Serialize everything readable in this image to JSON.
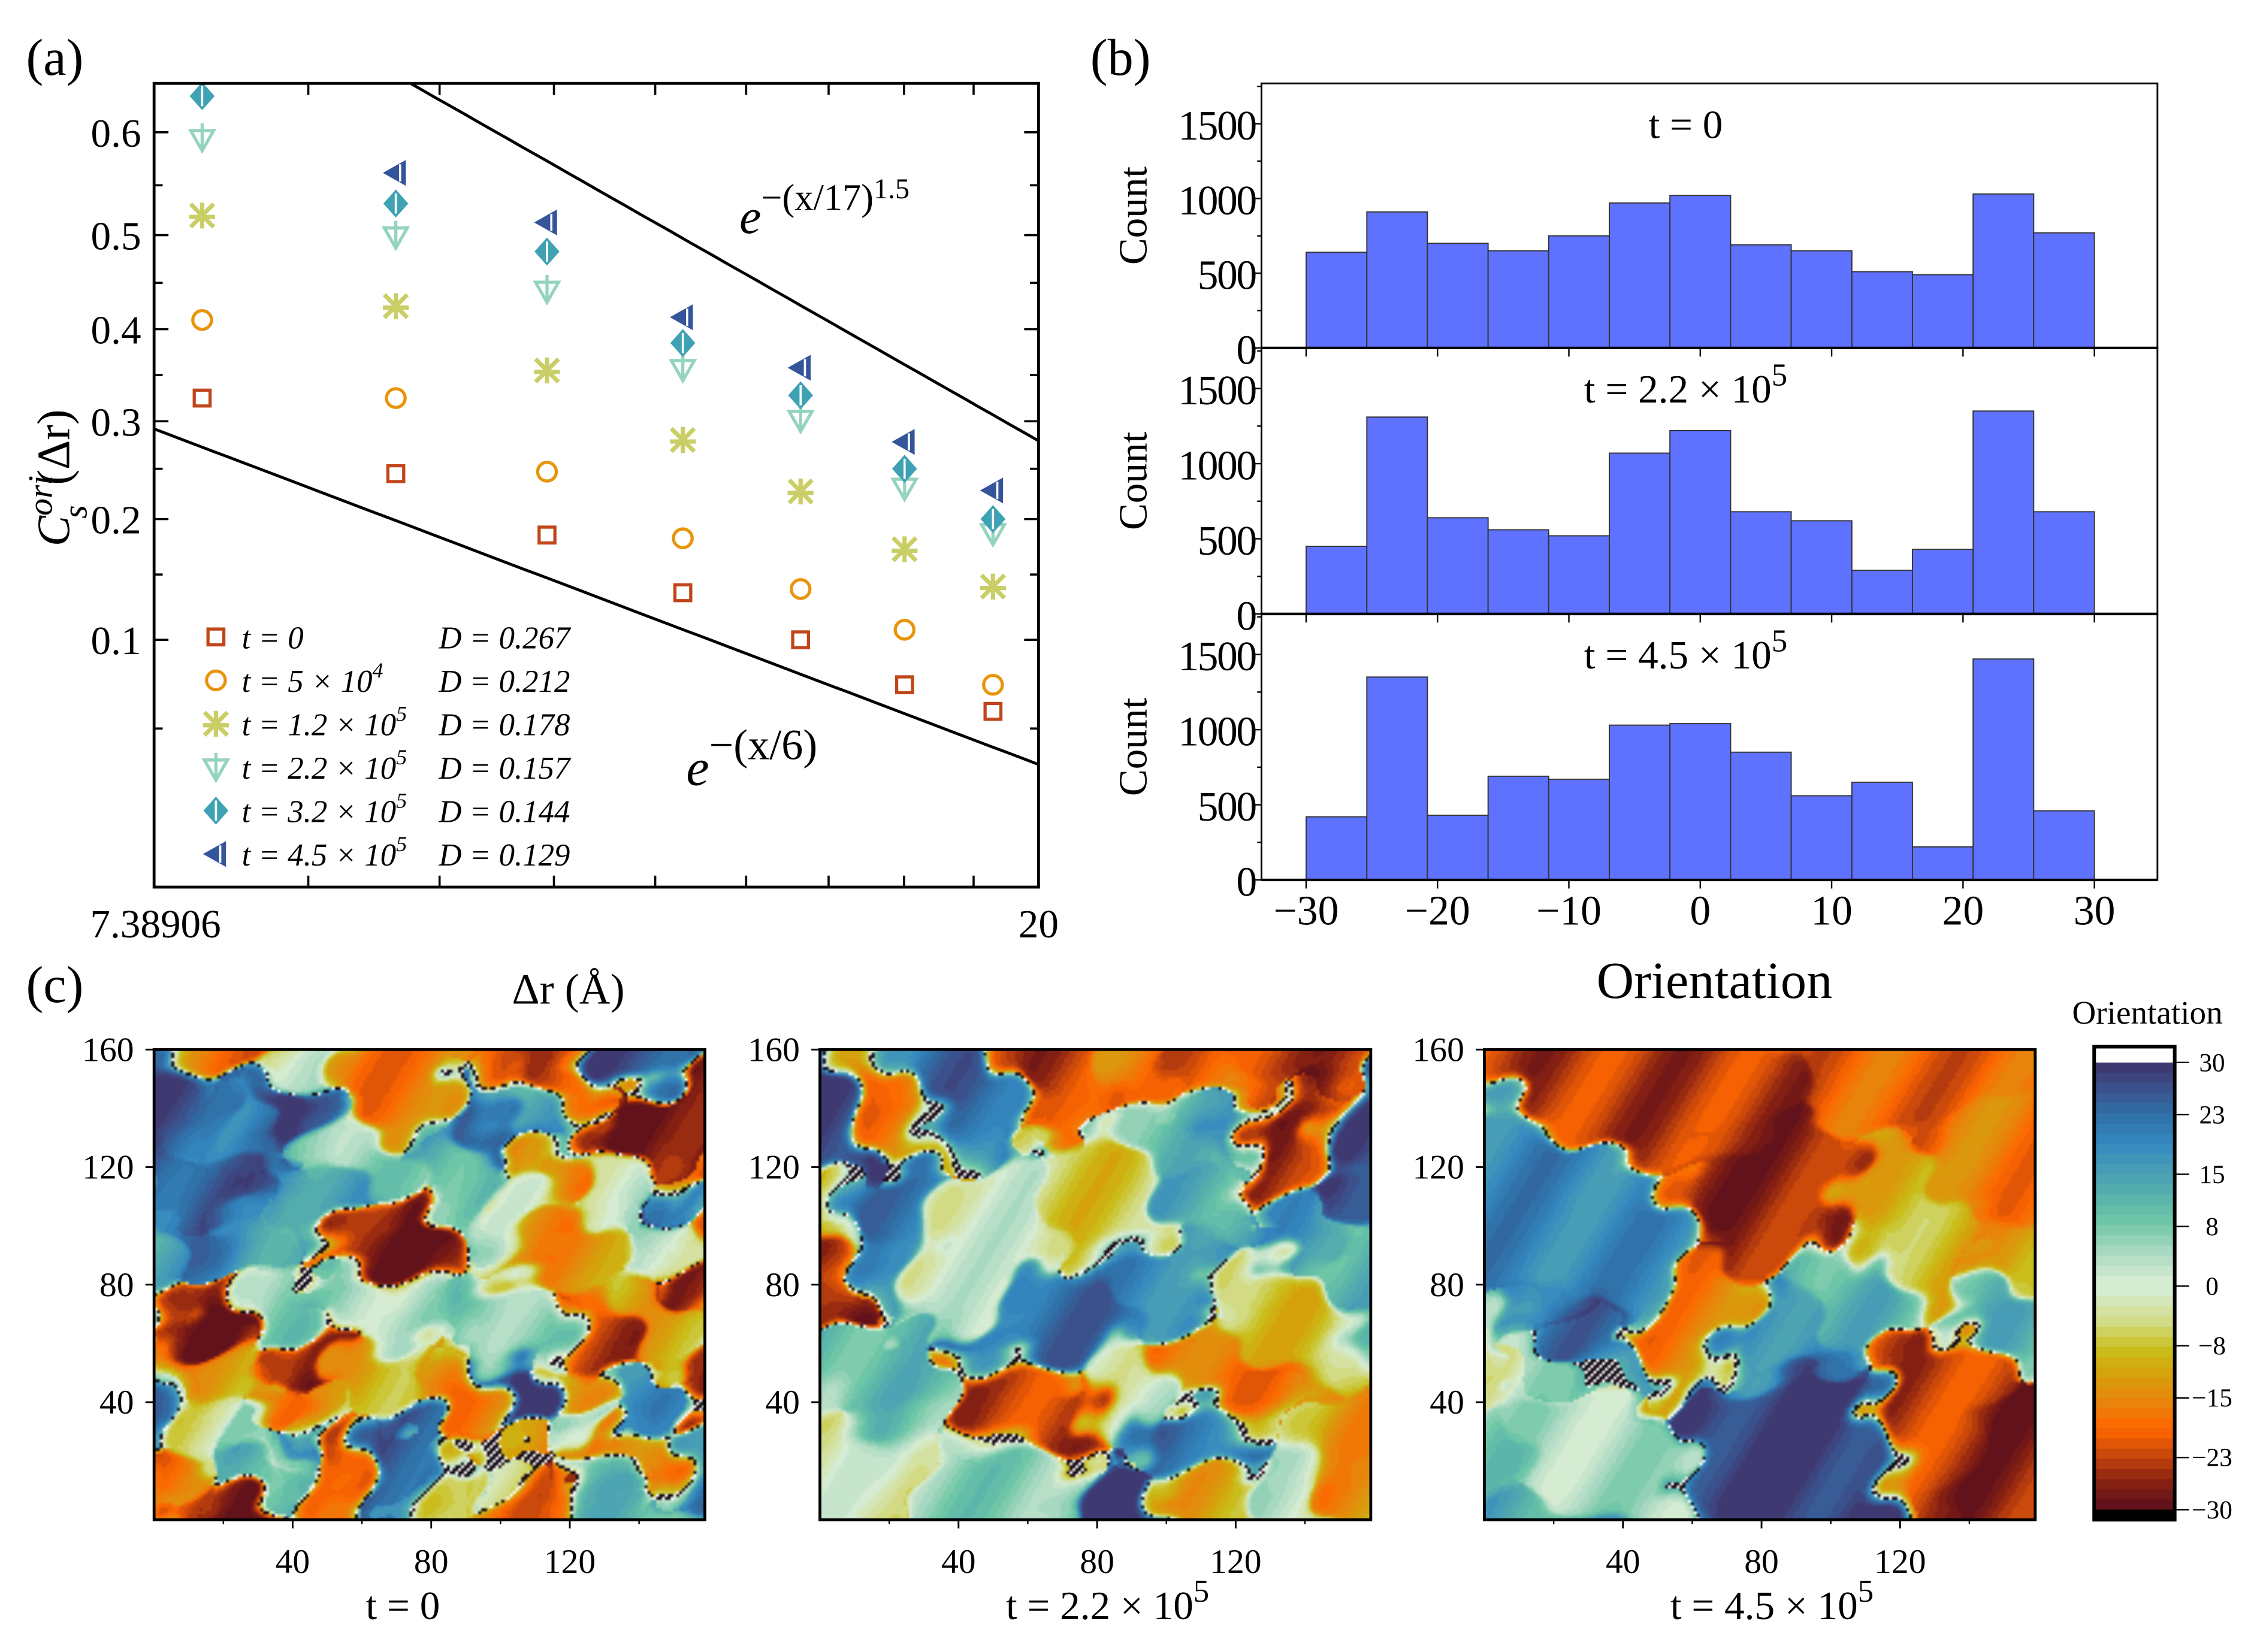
{
  "chart_data": [
    {
      "panel_label": "(a)",
      "type": "scatter",
      "xscale": "log",
      "yscale": "stretched-exponential (ln(-ln y))",
      "xlim": [
        7.38906,
        20
      ],
      "ylim": [
        0.0087,
        0.64
      ],
      "xtick_labels": [
        "7.38906",
        "20"
      ],
      "xticks": [
        7.38906,
        8.79,
        10.19,
        11.59,
        12.99,
        14.39,
        15.79,
        17.19,
        18.59,
        20
      ],
      "ytick_labels": [
        "0.1",
        "0.2",
        "0.3",
        "0.4",
        "0.5",
        "0.6"
      ],
      "yticks": [
        0.05,
        0.1,
        0.15,
        0.2,
        0.25,
        0.3,
        0.35,
        0.4,
        0.45,
        0.5,
        0.55,
        0.6
      ],
      "xlabel": "Δr (Å)",
      "ylabel": {
        "base": "C",
        "sub": "s",
        "sup": "ori",
        "rest": "(Δr)"
      },
      "x": [
        7.8,
        9.7,
        11.5,
        13.4,
        15.3,
        17.2,
        19.0
      ],
      "series": [
        {
          "t": "t = 0",
          "t_exp": "",
          "D": "D = 0.267",
          "marker": "square",
          "color": "#c0461a",
          "values": [
            0.325,
            0.245,
            0.185,
            0.135,
            0.1,
            0.072,
            0.058
          ]
        },
        {
          "t": "t = 5 × 10",
          "t_exp": "4",
          "D": "D = 0.212",
          "marker": "circle",
          "color": "#e8940c",
          "values": [
            0.41,
            0.325,
            0.247,
            0.182,
            0.138,
            0.107,
            0.072
          ]
        },
        {
          "t": "t = 1.2 × 10",
          "t_exp": "5",
          "D": "D = 0.178",
          "marker": "star",
          "color": "#c9cf66",
          "values": [
            0.52,
            0.425,
            0.355,
            0.28,
            0.227,
            0.172,
            0.14
          ]
        },
        {
          "t": "t = 2.2 × 10",
          "t_exp": "5",
          "D": "D = 0.157",
          "marker": "triangle-down",
          "color": "#94d4bc",
          "values": [
            0.595,
            0.5,
            0.443,
            0.358,
            0.303,
            0.232,
            0.188
          ]
        },
        {
          "t": "t = 3.2 × 10",
          "t_exp": "5",
          "D": "D = 0.144",
          "marker": "diamond",
          "color": "#3fa2b4",
          "values": [
            0.632,
            0.532,
            0.483,
            0.385,
            0.328,
            0.25,
            0.2
          ]
        },
        {
          "t": "t = 4.5 × 10",
          "t_exp": "5",
          "D": "D = 0.129",
          "marker": "triangle-left",
          "color": "#35559a",
          "values": [
            null,
            0.562,
            0.513,
            0.413,
            0.358,
            0.278,
            0.228
          ]
        }
      ],
      "fit_lines": [
        {
          "label_base": "e",
          "label_exp": "−(x/17)",
          "label_exp2": "1.5",
          "scale": 17,
          "beta": 1.5
        },
        {
          "label_base": "e",
          "label_exp": "−(x/6)",
          "label_exp2": "",
          "scale": 6,
          "beta": 1.0
        }
      ],
      "legend": "bottom-left"
    },
    {
      "panel_label": "(b)",
      "type": "bar",
      "histogram": true,
      "bin_edges": [
        -30,
        -25.38,
        -20.77,
        -16.15,
        -11.54,
        -6.92,
        -2.31,
        2.31,
        6.92,
        11.54,
        16.15,
        20.77,
        25.38,
        30
      ],
      "xlim": [
        -33.4,
        34.8
      ],
      "ylim": [
        0,
        1770
      ],
      "xtick_labels": [
        "−30",
        "−20",
        "−10",
        "0",
        "10",
        "20",
        "30"
      ],
      "xticks": [
        -30,
        -20,
        -10,
        0,
        10,
        20,
        30
      ],
      "ytick_labels": [
        "0",
        "500",
        "1000",
        "1500"
      ],
      "yticks": [
        0,
        500,
        1000,
        1500
      ],
      "xlabel": "Orientation",
      "ylabel": "Count",
      "bar_color": "#5f72ff",
      "series": [
        {
          "title": "t = 0",
          "title_exp": "",
          "values": [
            640,
            910,
            700,
            650,
            750,
            970,
            1020,
            690,
            650,
            510,
            490,
            1030,
            770
          ]
        },
        {
          "title": "t = 2.2 × 10",
          "title_exp": "5",
          "values": [
            450,
            1310,
            640,
            560,
            520,
            1070,
            1220,
            680,
            620,
            290,
            430,
            1350,
            680
          ]
        },
        {
          "title": "t = 4.5 × 10",
          "title_exp": "5",
          "values": [
            420,
            1350,
            430,
            690,
            670,
            1030,
            1040,
            850,
            560,
            650,
            220,
            1470,
            460
          ]
        }
      ]
    },
    {
      "panel_label": "(c)",
      "type": "heatmap",
      "xtick_labels": [
        "40",
        "80",
        "120"
      ],
      "ytick_labels": [
        "40",
        "80",
        "120",
        "160"
      ],
      "xlim": [
        0,
        159
      ],
      "ylim": [
        0,
        160
      ],
      "maps": [
        {
          "title": "t = 0",
          "title_exp": "",
          "domains": 70,
          "seed": 11
        },
        {
          "title": "t = 2.2 × 10",
          "title_exp": "5",
          "domains": 34,
          "seed": 23
        },
        {
          "title": "t = 4.5 × 10",
          "title_exp": "5",
          "domains": 22,
          "seed": 37
        }
      ],
      "colorbar": {
        "title": "Orientation",
        "range": [
          -30,
          30
        ],
        "tick_labels": [
          "30",
          "23",
          "15",
          "8",
          "0",
          "−8",
          "−15",
          "−23",
          "−30"
        ],
        "ticks": [
          30,
          23,
          15,
          8,
          0,
          -8,
          -15,
          -23,
          -30
        ],
        "colors": [
          [
            -30,
            "#5a0f1c"
          ],
          [
            -26,
            "#8a2212"
          ],
          [
            -23,
            "#c2440c"
          ],
          [
            -19,
            "#ff6600"
          ],
          [
            -15,
            "#e6860c"
          ],
          [
            -11,
            "#d4a40c"
          ],
          [
            -8,
            "#c8c01c"
          ],
          [
            -4,
            "#d3dc8a"
          ],
          [
            0,
            "#d6ecd2"
          ],
          [
            4,
            "#aad9c2"
          ],
          [
            8,
            "#70c8a6"
          ],
          [
            12,
            "#56b0ac"
          ],
          [
            16,
            "#4498b8"
          ],
          [
            19,
            "#3388c0"
          ],
          [
            23,
            "#306ea6"
          ],
          [
            27,
            "#3c4e88"
          ],
          [
            30,
            "#40346c"
          ]
        ]
      }
    }
  ]
}
